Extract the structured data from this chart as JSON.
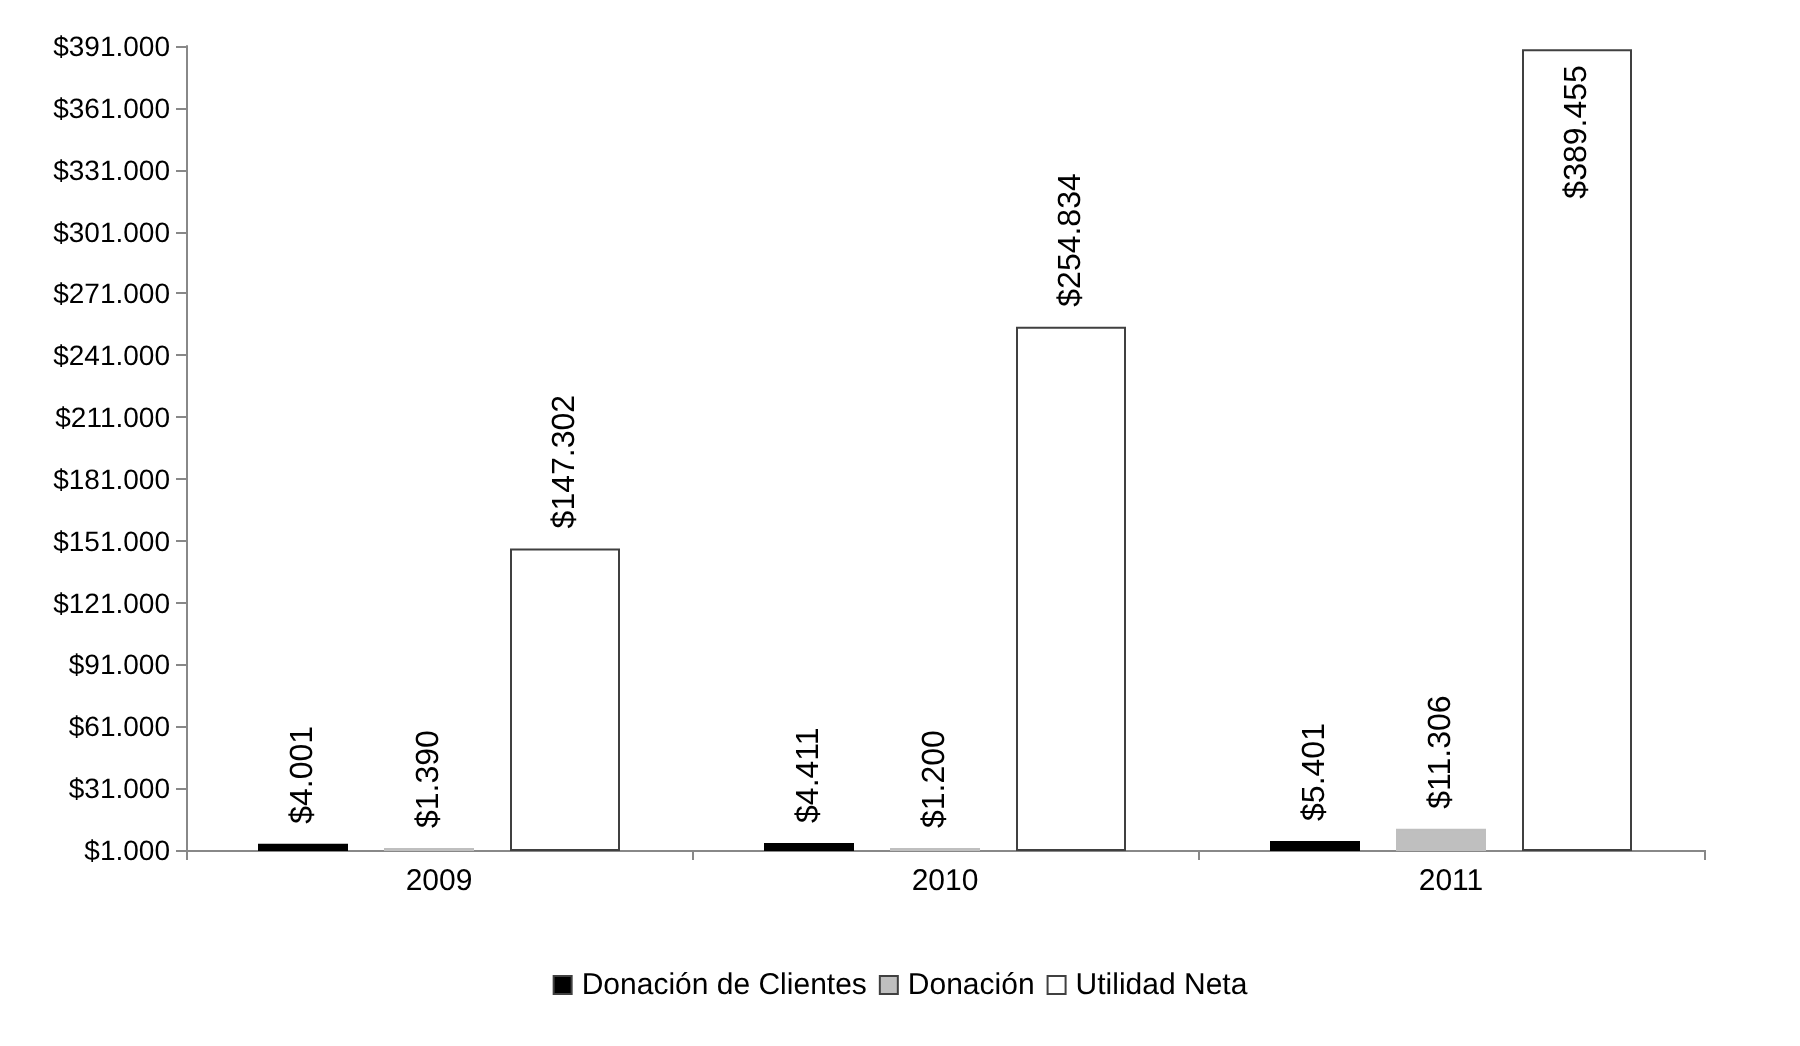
{
  "chart_data": {
    "type": "bar",
    "categories": [
      "2009",
      "2010",
      "2011"
    ],
    "series": [
      {
        "name": "Donación de Clientes",
        "color": "#000000",
        "values": [
          4001,
          4411,
          5401
        ],
        "value_labels": [
          "$4.001",
          "$4.411",
          "$5.401"
        ]
      },
      {
        "name": "Donación",
        "color": "#bfbfbf",
        "values": [
          1390,
          1200,
          11306
        ],
        "value_labels": [
          "$1.390",
          "$1.200",
          "$11.306"
        ]
      },
      {
        "name": "Utilidad Neta",
        "color": "#ffffff",
        "values": [
          147302,
          254834,
          389455
        ],
        "value_labels": [
          "$147.302",
          "$254.834",
          "$389.455"
        ]
      }
    ],
    "ylim": [
      1000,
      391000
    ],
    "yticks": [
      {
        "value": 1000,
        "label": "$1.000"
      },
      {
        "value": 31000,
        "label": "$31.000"
      },
      {
        "value": 61000,
        "label": "$61.000"
      },
      {
        "value": 91000,
        "label": "$91.000"
      },
      {
        "value": 121000,
        "label": "$121.000"
      },
      {
        "value": 151000,
        "label": "$151.000"
      },
      {
        "value": 181000,
        "label": "$181.000"
      },
      {
        "value": 211000,
        "label": "$211.000"
      },
      {
        "value": 241000,
        "label": "$241.000"
      },
      {
        "value": 271000,
        "label": "$271.000"
      },
      {
        "value": 301000,
        "label": "$301.000"
      },
      {
        "value": 331000,
        "label": "$331.000"
      },
      {
        "value": 361000,
        "label": "$361.000"
      },
      {
        "value": 391000,
        "label": "$391.000"
      }
    ],
    "grid": false,
    "legend": "bottom"
  }
}
